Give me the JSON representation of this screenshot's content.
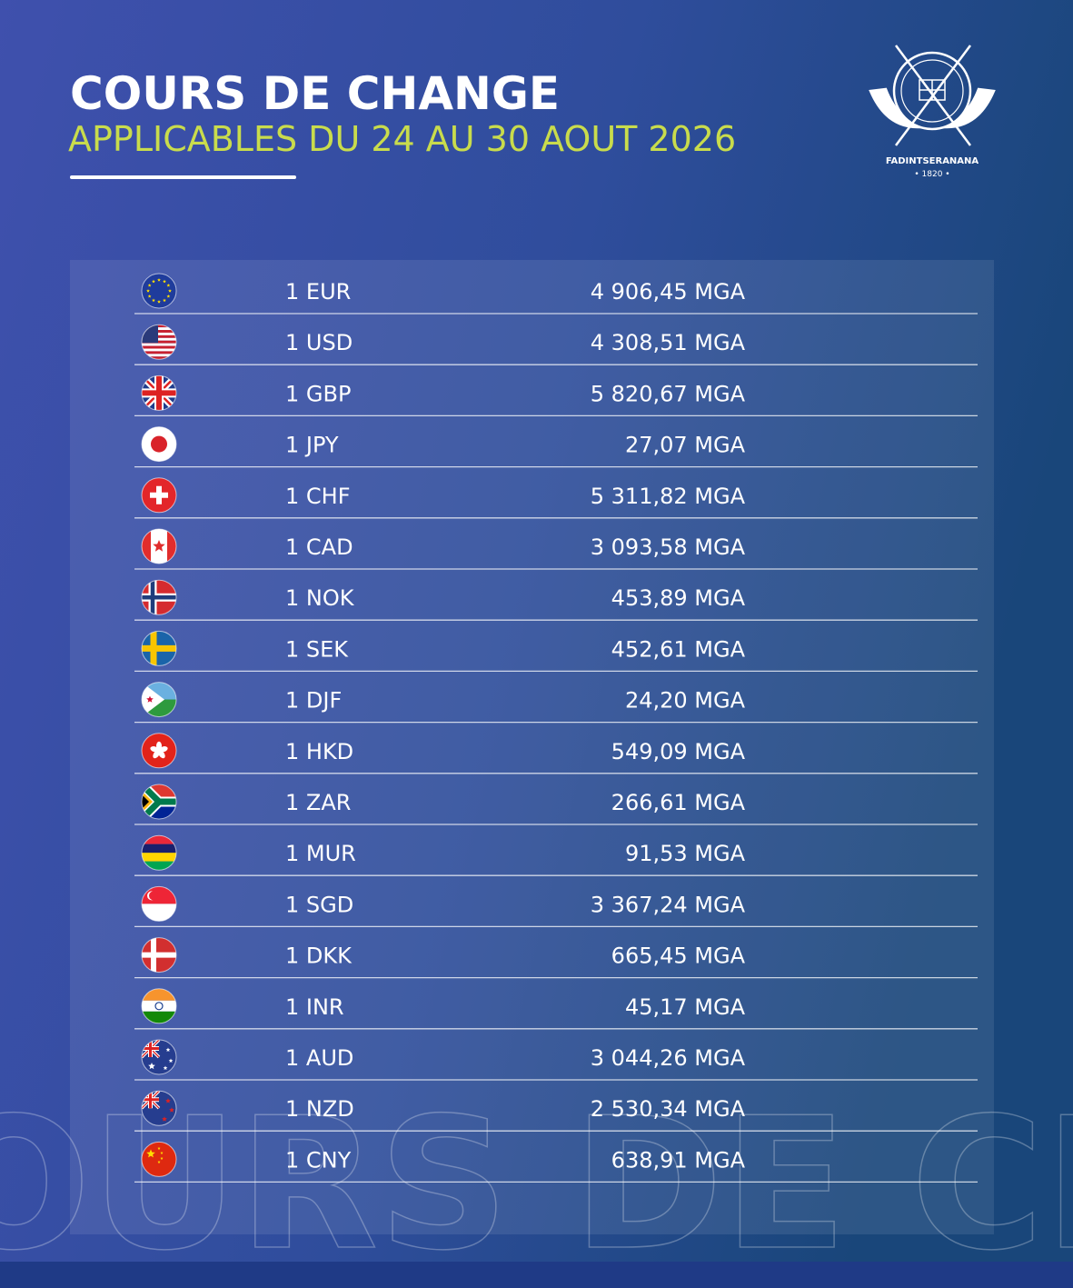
{
  "header": {
    "title": "COURS DE CHANGE",
    "subtitle": "APPLICABLES DU 24 AU 30 AOUT 2026"
  },
  "logo": {
    "name": "FADINTSERANANA",
    "year": "• 1820 •"
  },
  "table": {
    "rows": [
      [
        "1 EUR",
        "4 906,45 MGA"
      ],
      [
        "1 USD",
        "4 308,51 MGA"
      ],
      [
        "1 GBP",
        "5 820,67 MGA"
      ],
      [
        "1 JPY",
        "27,07 MGA"
      ],
      [
        "1 CHF",
        "5 311,82 MGA"
      ],
      [
        "1 CAD",
        "3 093,58 MGA"
      ],
      [
        "1 NOK",
        "453,89 MGA"
      ],
      [
        "1 SEK",
        "452,61 MGA"
      ],
      [
        "1 DJF",
        "24,20 MGA"
      ],
      [
        "1 HKD",
        "549,09 MGA"
      ],
      [
        "1 ZAR",
        "266,61 MGA"
      ],
      [
        "1 MUR",
        "91,53 MGA"
      ],
      [
        "1 SGD",
        "3 367,24 MGA"
      ],
      [
        "1 DKK",
        "665,45 MGA"
      ],
      [
        "1 INR",
        "45,17 MGA"
      ],
      [
        "1 AUD",
        "3 044,26 MGA"
      ],
      [
        "1 NZD",
        "2 530,34 MGA"
      ],
      [
        "1 CNY",
        "638,91 MGA"
      ]
    ]
  },
  "watermark": "OURS DE CHA"
}
